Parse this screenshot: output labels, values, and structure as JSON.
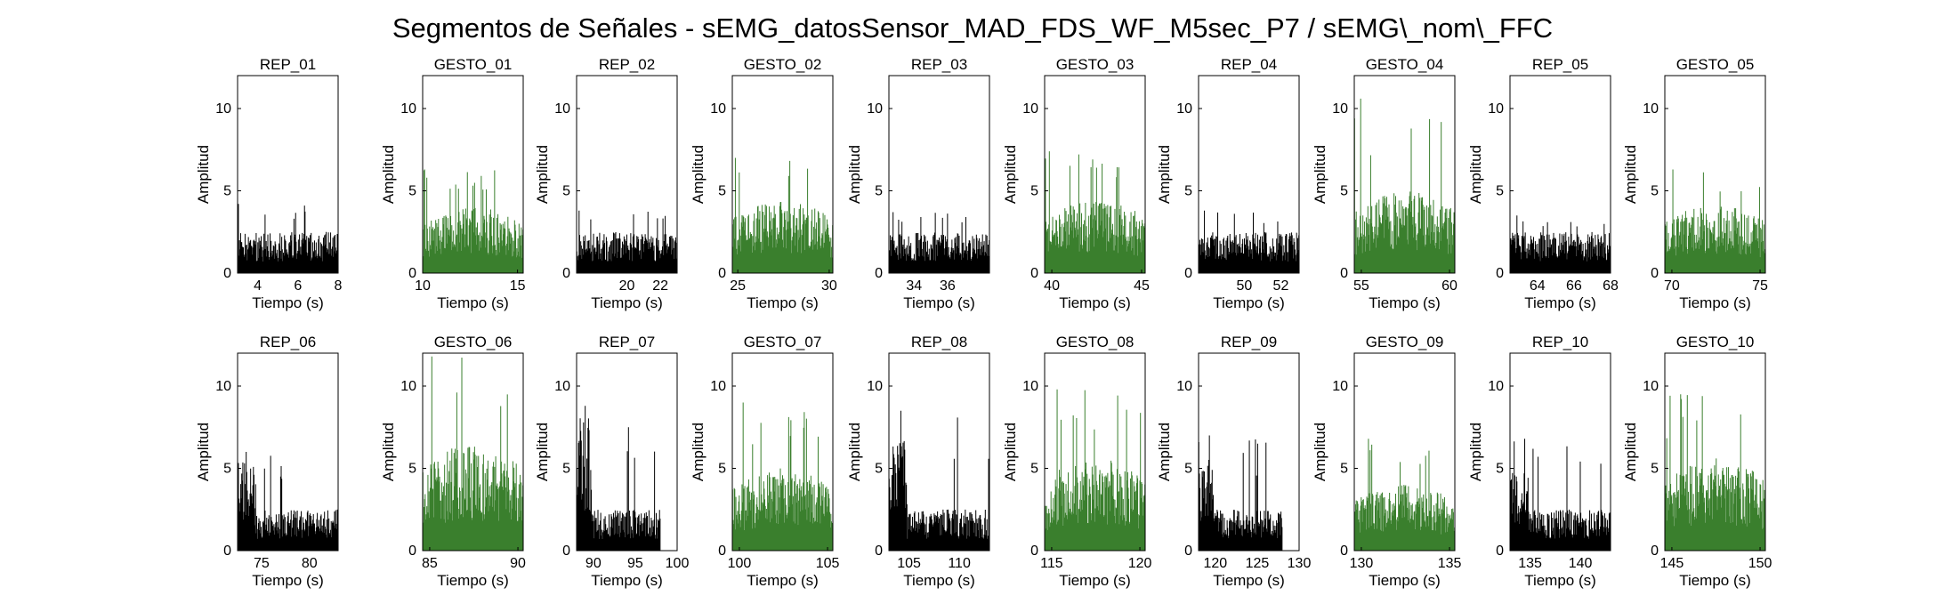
{
  "figure": {
    "title": "Segmentos de Señales - sEMG_datosSensor_MAD_FDS_WF_M5sec_P7 / sEMG\\_nom\\_FFC"
  },
  "colors": {
    "rep": "#000000",
    "gesto": "#3a7f2d",
    "axis": "#000000"
  },
  "chart_data": [
    {
      "type": "bar",
      "kind": "rep",
      "title": "REP_01",
      "xlabel": "Tiempo (s)",
      "ylabel": "Amplitud",
      "xlim": [
        3,
        8
      ],
      "ylim": [
        0,
        12
      ],
      "xticks": [
        4,
        6,
        8
      ],
      "yticks": [
        0,
        5,
        10
      ],
      "x": [
        3,
        8
      ],
      "base_amplitude": 2.0,
      "peak_amplitude": 4.2,
      "burst_amplitude": null
    },
    {
      "type": "bar",
      "kind": "gesto",
      "title": "GESTO_01",
      "xlabel": "Tiempo (s)",
      "ylabel": "Amplitud",
      "xlim": [
        10,
        15.3
      ],
      "ylim": [
        0,
        12
      ],
      "xticks": [
        10,
        15
      ],
      "yticks": [
        0,
        5,
        10
      ],
      "x": [
        10,
        15.3
      ],
      "base_amplitude": 3.2,
      "peak_amplitude": 6.3,
      "burst_amplitude": null
    },
    {
      "type": "bar",
      "kind": "rep",
      "title": "REP_02",
      "xlabel": "Tiempo (s)",
      "ylabel": "Amplitud",
      "xlim": [
        17,
        23
      ],
      "ylim": [
        0,
        12
      ],
      "xticks": [
        20,
        22
      ],
      "yticks": [
        0,
        5,
        10
      ],
      "x": [
        17,
        23
      ],
      "base_amplitude": 2.0,
      "peak_amplitude": 3.8,
      "burst_amplitude": null
    },
    {
      "type": "bar",
      "kind": "gesto",
      "title": "GESTO_02",
      "xlabel": "Tiempo (s)",
      "ylabel": "Amplitud",
      "xlim": [
        24.7,
        30.2
      ],
      "ylim": [
        0,
        12
      ],
      "xticks": [
        25,
        30
      ],
      "yticks": [
        0,
        5,
        10
      ],
      "x": [
        24.7,
        30.2
      ],
      "base_amplitude": 3.5,
      "peak_amplitude": 7.0,
      "burst_amplitude": null
    },
    {
      "type": "bar",
      "kind": "rep",
      "title": "REP_03",
      "xlabel": "Tiempo (s)",
      "ylabel": "Amplitud",
      "xlim": [
        32.5,
        38.5
      ],
      "ylim": [
        0,
        12
      ],
      "xticks": [
        34,
        36
      ],
      "yticks": [
        0,
        5,
        10
      ],
      "x": [
        32.5,
        38.5
      ],
      "base_amplitude": 2.0,
      "peak_amplitude": 3.7,
      "burst_amplitude": null
    },
    {
      "type": "bar",
      "kind": "gesto",
      "title": "GESTO_03",
      "xlabel": "Tiempo (s)",
      "ylabel": "Amplitud",
      "xlim": [
        39.6,
        45.2
      ],
      "ylim": [
        0,
        12
      ],
      "xticks": [
        40,
        45
      ],
      "yticks": [
        0,
        5,
        10
      ],
      "x": [
        39.6,
        45.2
      ],
      "base_amplitude": 3.6,
      "peak_amplitude": 7.4,
      "burst_amplitude": null
    },
    {
      "type": "bar",
      "kind": "rep",
      "title": "REP_04",
      "xlabel": "Tiempo (s)",
      "ylabel": "Amplitud",
      "xlim": [
        47.5,
        53
      ],
      "ylim": [
        0,
        12
      ],
      "xticks": [
        50,
        52
      ],
      "yticks": [
        0,
        5,
        10
      ],
      "x": [
        47.5,
        53
      ],
      "base_amplitude": 2.0,
      "peak_amplitude": 3.8,
      "burst_amplitude": null
    },
    {
      "type": "bar",
      "kind": "gesto",
      "title": "GESTO_04",
      "xlabel": "Tiempo (s)",
      "ylabel": "Amplitud",
      "xlim": [
        54.6,
        60.3
      ],
      "ylim": [
        0,
        12
      ],
      "xticks": [
        55,
        60
      ],
      "yticks": [
        0,
        5,
        10
      ],
      "x": [
        54.6,
        60.3
      ],
      "base_amplitude": 4.0,
      "peak_amplitude": 10.6,
      "burst_amplitude": null
    },
    {
      "type": "bar",
      "kind": "rep",
      "title": "REP_05",
      "xlabel": "Tiempo (s)",
      "ylabel": "Amplitud",
      "xlim": [
        62.5,
        68
      ],
      "ylim": [
        0,
        12
      ],
      "xticks": [
        64,
        66,
        68
      ],
      "yticks": [
        0,
        5,
        10
      ],
      "x": [
        62.5,
        68
      ],
      "base_amplitude": 2.0,
      "peak_amplitude": 3.5,
      "burst_amplitude": null
    },
    {
      "type": "bar",
      "kind": "gesto",
      "title": "GESTO_05",
      "xlabel": "Tiempo (s)",
      "ylabel": "Amplitud",
      "xlim": [
        69.6,
        75.3
      ],
      "ylim": [
        0,
        12
      ],
      "xticks": [
        70,
        75
      ],
      "yticks": [
        0,
        5,
        10
      ],
      "x": [
        69.6,
        75.3
      ],
      "base_amplitude": 3.3,
      "peak_amplitude": 6.3,
      "burst_amplitude": null
    },
    {
      "type": "bar",
      "kind": "rep",
      "title": "REP_06",
      "xlabel": "Tiempo (s)",
      "ylabel": "Amplitud",
      "xlim": [
        72.5,
        83
      ],
      "ylim": [
        0,
        12
      ],
      "xticks": [
        75,
        80
      ],
      "yticks": [
        0,
        5,
        10
      ],
      "x": [
        72.5,
        83
      ],
      "base_amplitude": 2.0,
      "peak_amplitude": 6.0,
      "burst_amplitude": 4.3
    },
    {
      "type": "bar",
      "kind": "gesto",
      "title": "GESTO_06",
      "xlabel": "Tiempo (s)",
      "ylabel": "Amplitud",
      "xlim": [
        84.6,
        90.3
      ],
      "ylim": [
        0,
        12
      ],
      "xticks": [
        85,
        90
      ],
      "yticks": [
        0,
        5,
        10
      ],
      "x": [
        84.6,
        90.3
      ],
      "base_amplitude": 5.2,
      "peak_amplitude": 11.8,
      "burst_amplitude": null
    },
    {
      "type": "bar",
      "kind": "rep",
      "title": "REP_07",
      "xlabel": "Tiempo (s)",
      "ylabel": "Amplitud",
      "xlim": [
        88,
        100
      ],
      "ylim": [
        0,
        12
      ],
      "xticks": [
        90,
        95,
        100
      ],
      "yticks": [
        0,
        5,
        10
      ],
      "x": [
        88,
        98
      ],
      "base_amplitude": 2.0,
      "peak_amplitude": 8.8,
      "burst_amplitude": 6.5
    },
    {
      "type": "bar",
      "kind": "gesto",
      "title": "GESTO_07",
      "xlabel": "Tiempo (s)",
      "ylabel": "Amplitud",
      "xlim": [
        99.6,
        105.3
      ],
      "ylim": [
        0,
        12
      ],
      "xticks": [
        100,
        105
      ],
      "yticks": [
        0,
        5,
        10
      ],
      "x": [
        99.6,
        105.3
      ],
      "base_amplitude": 4.0,
      "peak_amplitude": 9.0,
      "burst_amplitude": null
    },
    {
      "type": "bar",
      "kind": "rep",
      "title": "REP_08",
      "xlabel": "Tiempo (s)",
      "ylabel": "Amplitud",
      "xlim": [
        103,
        113
      ],
      "ylim": [
        0,
        12
      ],
      "xticks": [
        105,
        110
      ],
      "yticks": [
        0,
        5,
        10
      ],
      "x": [
        103,
        113
      ],
      "base_amplitude": 2.0,
      "peak_amplitude": 8.5,
      "burst_amplitude": 5.5
    },
    {
      "type": "bar",
      "kind": "gesto",
      "title": "GESTO_08",
      "xlabel": "Tiempo (s)",
      "ylabel": "Amplitud",
      "xlim": [
        114.6,
        120.3
      ],
      "ylim": [
        0,
        12
      ],
      "xticks": [
        115,
        120
      ],
      "yticks": [
        0,
        5,
        10
      ],
      "x": [
        114.6,
        120.3
      ],
      "base_amplitude": 4.5,
      "peak_amplitude": 9.8,
      "burst_amplitude": null
    },
    {
      "type": "bar",
      "kind": "rep",
      "title": "REP_09",
      "xlabel": "Tiempo (s)",
      "ylabel": "Amplitud",
      "xlim": [
        118,
        130
      ],
      "ylim": [
        0,
        12
      ],
      "xticks": [
        120,
        125,
        130
      ],
      "yticks": [
        0,
        5,
        10
      ],
      "x": [
        118,
        128
      ],
      "base_amplitude": 2.0,
      "peak_amplitude": 7.0,
      "burst_amplitude": 5.0
    },
    {
      "type": "bar",
      "kind": "gesto",
      "title": "GESTO_09",
      "xlabel": "Tiempo (s)",
      "ylabel": "Amplitud",
      "xlim": [
        129.6,
        135.3
      ],
      "ylim": [
        0,
        12
      ],
      "xticks": [
        130,
        135
      ],
      "yticks": [
        0,
        5,
        10
      ],
      "x": [
        129.6,
        135.3
      ],
      "base_amplitude": 3.2,
      "peak_amplitude": 6.8,
      "burst_amplitude": null
    },
    {
      "type": "bar",
      "kind": "rep",
      "title": "REP_10",
      "xlabel": "Tiempo (s)",
      "ylabel": "Amplitud",
      "xlim": [
        133,
        143
      ],
      "ylim": [
        0,
        12
      ],
      "xticks": [
        135,
        140
      ],
      "yticks": [
        0,
        5,
        10
      ],
      "x": [
        133,
        143
      ],
      "base_amplitude": 2.0,
      "peak_amplitude": 6.8,
      "burst_amplitude": 4.0
    },
    {
      "type": "bar",
      "kind": "gesto",
      "title": "GESTO_10",
      "xlabel": "Tiempo (s)",
      "ylabel": "Amplitud",
      "xlim": [
        144.6,
        150.3
      ],
      "ylim": [
        0,
        12
      ],
      "xticks": [
        145,
        150
      ],
      "yticks": [
        0,
        5,
        10
      ],
      "x": [
        144.6,
        150.3
      ],
      "base_amplitude": 4.5,
      "peak_amplitude": 9.5,
      "burst_amplitude": null
    }
  ]
}
